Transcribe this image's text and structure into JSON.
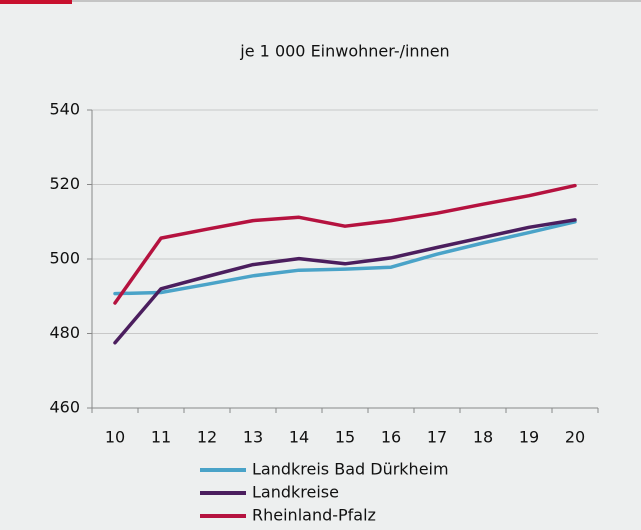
{
  "chart_data": {
    "type": "line",
    "title": "je 1 000 Einwohner-/innen",
    "categories": [
      "10",
      "11",
      "12",
      "13",
      "14",
      "15",
      "16",
      "17",
      "18",
      "19",
      "20"
    ],
    "series": [
      {
        "name": "Landkreis Bad Dürkheim",
        "color": "#4aa3c8",
        "values": [
          490.7,
          491,
          493.2,
          495.5,
          497,
          497.3,
          497.8,
          501.3,
          504.3,
          507.1,
          510
        ]
      },
      {
        "name": "Landkreise",
        "color": "#4b1e5e",
        "values": [
          477.5,
          492,
          495.3,
          498.5,
          500.1,
          498.7,
          500.3,
          503.1,
          505.8,
          508.5,
          510.5
        ]
      },
      {
        "name": "Rheinland-Pfalz",
        "color": "#b5123f",
        "values": [
          488.2,
          505.6,
          508,
          510.3,
          511.2,
          508.8,
          510.3,
          512.3,
          514.7,
          517,
          519.7
        ]
      }
    ],
    "ylim": [
      460,
      540
    ],
    "yticks": [
      460,
      480,
      500,
      520,
      540
    ],
    "grid": true,
    "legend": "bottom"
  }
}
